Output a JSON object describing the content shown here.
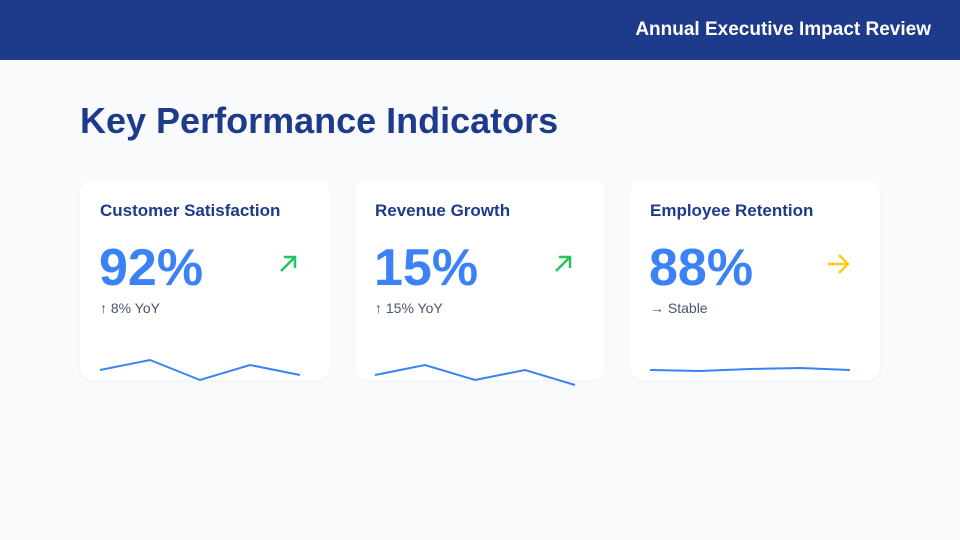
{
  "header": {
    "title": "Annual Executive Impact Review"
  },
  "page": {
    "title": "Key Performance Indicators"
  },
  "colors": {
    "up": "#22c55e",
    "flat": "#facc15",
    "line": "#3b82f6"
  },
  "cards": [
    {
      "label": "Customer Satisfaction",
      "value": "92%",
      "change": "↑ 8% YoY",
      "trend": "up",
      "spark": [
        10,
        20,
        0,
        15,
        5
      ]
    },
    {
      "label": "Revenue Growth",
      "value": "15%",
      "change": "↑ 15% YoY",
      "trend": "up",
      "spark": [
        10,
        20,
        5,
        15,
        0
      ]
    },
    {
      "label": "Employee Retention",
      "value": "88%",
      "change": "→ Stable",
      "trend": "flat",
      "spark": [
        10,
        9,
        11,
        12,
        10
      ]
    }
  ]
}
